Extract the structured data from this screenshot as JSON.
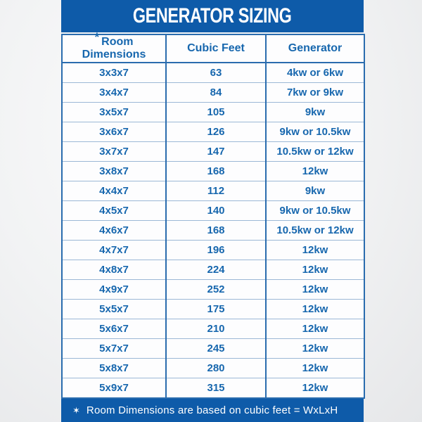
{
  "header": {
    "title": "GENERATOR SIZING"
  },
  "table": {
    "columns": [
      {
        "marker": "*",
        "label": "Room Dimensions"
      },
      {
        "label": "Cubic Feet"
      },
      {
        "label": "Generator"
      }
    ],
    "rows": [
      {
        "room": "3x3x7",
        "cubic_feet": "63",
        "generator": "4kw or 6kw"
      },
      {
        "room": "3x4x7",
        "cubic_feet": "84",
        "generator": "7kw or 9kw"
      },
      {
        "room": "3x5x7",
        "cubic_feet": "105",
        "generator": "9kw"
      },
      {
        "room": "3x6x7",
        "cubic_feet": "126",
        "generator": "9kw or 10.5kw"
      },
      {
        "room": "3x7x7",
        "cubic_feet": "147",
        "generator": "10.5kw or 12kw"
      },
      {
        "room": "3x8x7",
        "cubic_feet": "168",
        "generator": "12kw"
      },
      {
        "room": "4x4x7",
        "cubic_feet": "112",
        "generator": "9kw"
      },
      {
        "room": "4x5x7",
        "cubic_feet": "140",
        "generator": "9kw or 10.5kw"
      },
      {
        "room": "4x6x7",
        "cubic_feet": "168",
        "generator": "10.5kw or 12kw"
      },
      {
        "room": "4x7x7",
        "cubic_feet": "196",
        "generator": "12kw"
      },
      {
        "room": "4x8x7",
        "cubic_feet": "224",
        "generator": "12kw"
      },
      {
        "room": "4x9x7",
        "cubic_feet": "252",
        "generator": "12kw"
      },
      {
        "room": "5x5x7",
        "cubic_feet": "175",
        "generator": "12kw"
      },
      {
        "room": "5x6x7",
        "cubic_feet": "210",
        "generator": "12kw"
      },
      {
        "room": "5x7x7",
        "cubic_feet": "245",
        "generator": "12kw"
      },
      {
        "room": "5x8x7",
        "cubic_feet": "280",
        "generator": "12kw"
      },
      {
        "room": "5x9x7",
        "cubic_feet": "315",
        "generator": "12kw"
      }
    ]
  },
  "footer": {
    "star": "✶",
    "note": "Room Dimensions are based on cubic feet = WxLxH"
  },
  "colors": {
    "brand_blue": "#0e5ba9",
    "table_text_blue": "#1767ae",
    "border_strong": "#2a6cae",
    "border_light": "#9cb8d6",
    "page_background": "#eceded",
    "text_white": "#ffffff"
  }
}
